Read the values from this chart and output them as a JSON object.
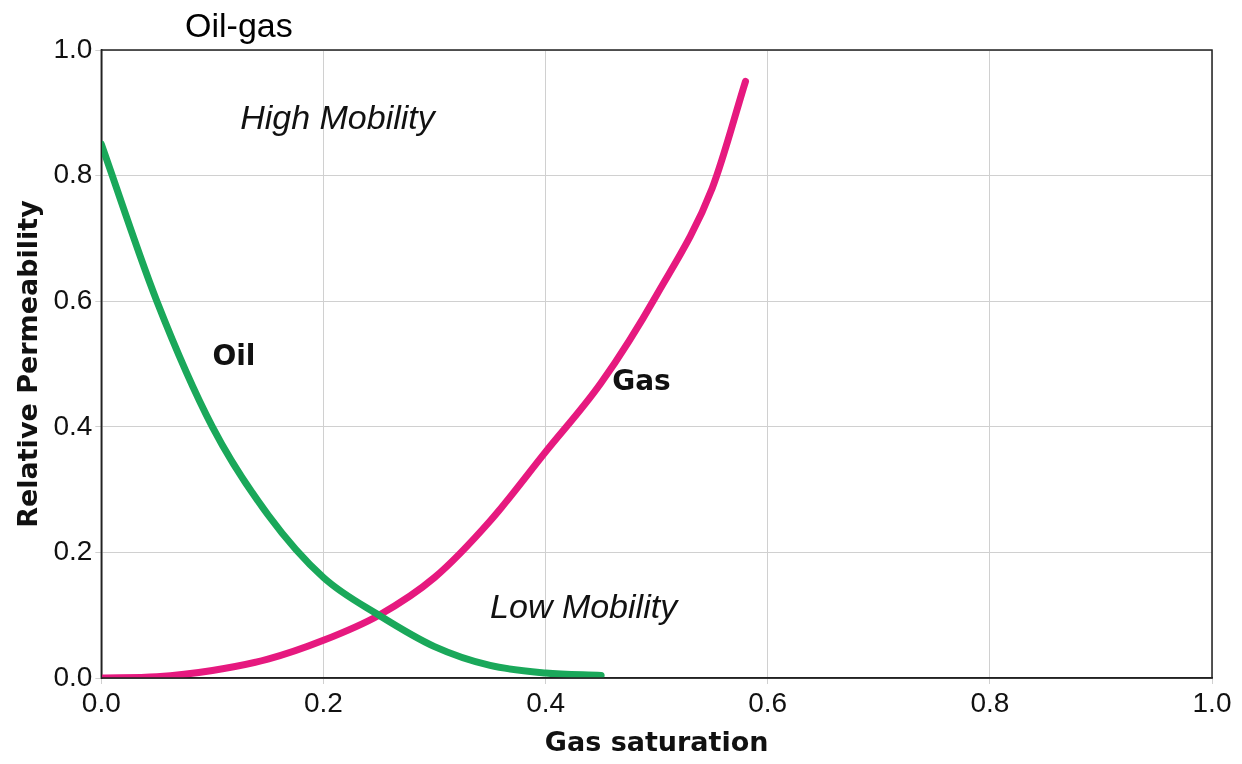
{
  "chart_data": {
    "type": "line",
    "title": "Oil-gas",
    "xlabel": "Gas saturation",
    "ylabel": "Relative Permeability",
    "xlim": [
      0,
      1
    ],
    "xticks": [
      {
        "value": 0,
        "label": "0.0"
      },
      0.2,
      0.4,
      0.6,
      0.8,
      {
        "value": 1,
        "label": "1.0"
      }
    ],
    "ylim": [
      0,
      1
    ],
    "yticks": [
      {
        "value": 0,
        "label": "0.0"
      },
      0.2,
      0.4,
      0.6,
      0.8,
      {
        "value": 1,
        "label": "1.0"
      }
    ],
    "grid": true,
    "marker": "none",
    "line_style": "solid",
    "series": [
      {
        "name": "Oil",
        "color": "#1aa85a",
        "x": [
          0,
          0.05,
          0.1,
          0.15,
          0.2,
          0.25,
          0.3,
          0.35,
          0.4,
          0.45
        ],
        "values": [
          0.85,
          0.6,
          0.4,
          0.26,
          0.16,
          0.1,
          0.05,
          0.02,
          0.008,
          0.004
        ]
      },
      {
        "name": "Gas",
        "color": "#e6197f",
        "x": [
          0,
          0.05,
          0.1,
          0.15,
          0.2,
          0.25,
          0.3,
          0.35,
          0.4,
          0.45,
          0.5,
          0.55,
          0.58
        ],
        "values": [
          0,
          0.002,
          0.012,
          0.03,
          0.06,
          0.1,
          0.16,
          0.25,
          0.36,
          0.47,
          0.61,
          0.78,
          0.95
        ]
      }
    ],
    "annotations": [
      "High Mobility",
      "Low Mobility"
    ]
  }
}
